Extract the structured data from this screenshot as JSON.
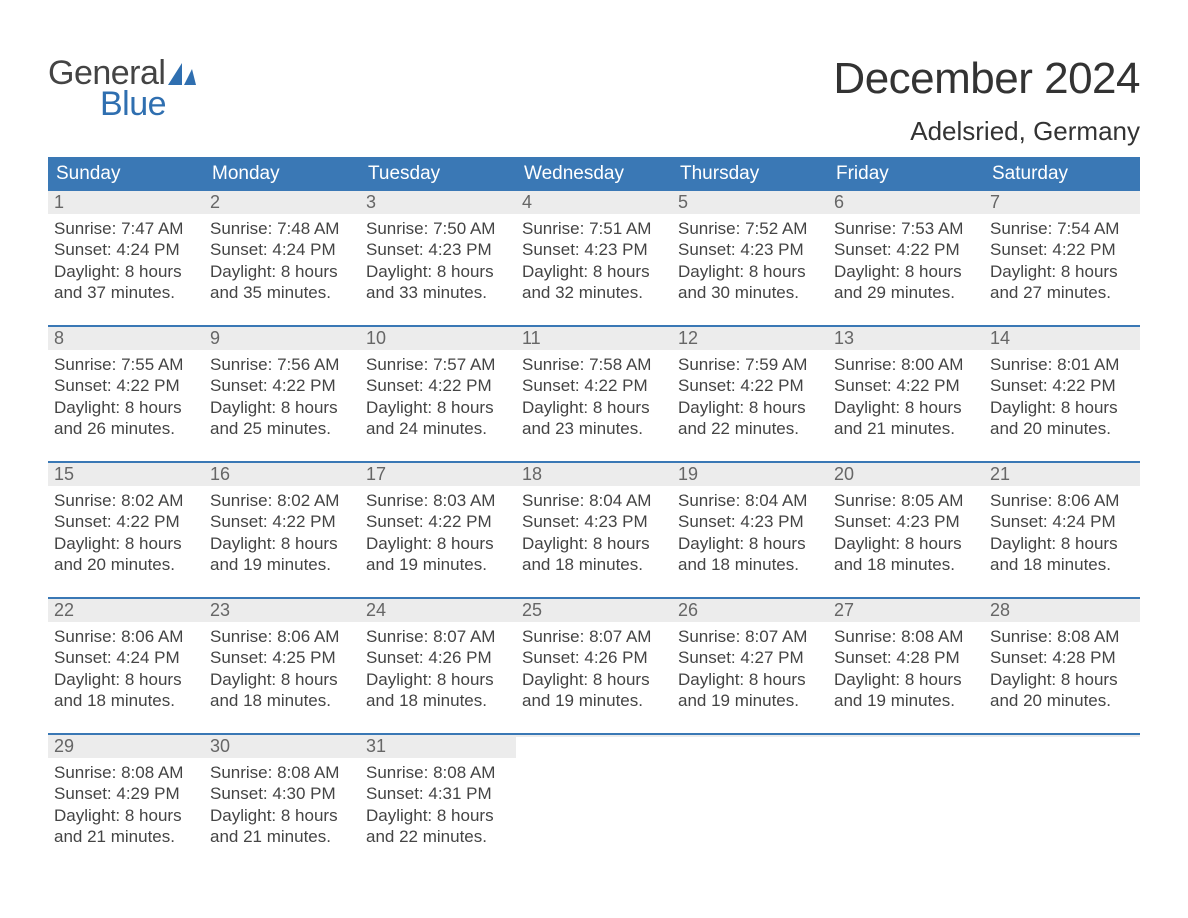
{
  "logo": {
    "text1": "General",
    "text2": "Blue",
    "sail_color": "#2f6fb0",
    "text1_color": "#444444",
    "text2_color": "#2f6fb0"
  },
  "title": "December 2024",
  "location": "Adelsried, Germany",
  "colors": {
    "header_bg": "#3a78b5",
    "header_text": "#ffffff",
    "daynum_bg": "#ececec",
    "daynum_text": "#666666",
    "body_text": "#444444",
    "week_border": "#3a78b5",
    "page_bg": "#ffffff"
  },
  "typography": {
    "title_fontsize": 44,
    "location_fontsize": 26,
    "dow_fontsize": 19,
    "daynum_fontsize": 18,
    "body_fontsize": 17,
    "font_family": "Arial"
  },
  "day_labels": [
    "Sunday",
    "Monday",
    "Tuesday",
    "Wednesday",
    "Thursday",
    "Friday",
    "Saturday"
  ],
  "weeks": [
    [
      {
        "n": "1",
        "sunrise": "Sunrise: 7:47 AM",
        "sunset": "Sunset: 4:24 PM",
        "d1": "Daylight: 8 hours",
        "d2": "and 37 minutes."
      },
      {
        "n": "2",
        "sunrise": "Sunrise: 7:48 AM",
        "sunset": "Sunset: 4:24 PM",
        "d1": "Daylight: 8 hours",
        "d2": "and 35 minutes."
      },
      {
        "n": "3",
        "sunrise": "Sunrise: 7:50 AM",
        "sunset": "Sunset: 4:23 PM",
        "d1": "Daylight: 8 hours",
        "d2": "and 33 minutes."
      },
      {
        "n": "4",
        "sunrise": "Sunrise: 7:51 AM",
        "sunset": "Sunset: 4:23 PM",
        "d1": "Daylight: 8 hours",
        "d2": "and 32 minutes."
      },
      {
        "n": "5",
        "sunrise": "Sunrise: 7:52 AM",
        "sunset": "Sunset: 4:23 PM",
        "d1": "Daylight: 8 hours",
        "d2": "and 30 minutes."
      },
      {
        "n": "6",
        "sunrise": "Sunrise: 7:53 AM",
        "sunset": "Sunset: 4:22 PM",
        "d1": "Daylight: 8 hours",
        "d2": "and 29 minutes."
      },
      {
        "n": "7",
        "sunrise": "Sunrise: 7:54 AM",
        "sunset": "Sunset: 4:22 PM",
        "d1": "Daylight: 8 hours",
        "d2": "and 27 minutes."
      }
    ],
    [
      {
        "n": "8",
        "sunrise": "Sunrise: 7:55 AM",
        "sunset": "Sunset: 4:22 PM",
        "d1": "Daylight: 8 hours",
        "d2": "and 26 minutes."
      },
      {
        "n": "9",
        "sunrise": "Sunrise: 7:56 AM",
        "sunset": "Sunset: 4:22 PM",
        "d1": "Daylight: 8 hours",
        "d2": "and 25 minutes."
      },
      {
        "n": "10",
        "sunrise": "Sunrise: 7:57 AM",
        "sunset": "Sunset: 4:22 PM",
        "d1": "Daylight: 8 hours",
        "d2": "and 24 minutes."
      },
      {
        "n": "11",
        "sunrise": "Sunrise: 7:58 AM",
        "sunset": "Sunset: 4:22 PM",
        "d1": "Daylight: 8 hours",
        "d2": "and 23 minutes."
      },
      {
        "n": "12",
        "sunrise": "Sunrise: 7:59 AM",
        "sunset": "Sunset: 4:22 PM",
        "d1": "Daylight: 8 hours",
        "d2": "and 22 minutes."
      },
      {
        "n": "13",
        "sunrise": "Sunrise: 8:00 AM",
        "sunset": "Sunset: 4:22 PM",
        "d1": "Daylight: 8 hours",
        "d2": "and 21 minutes."
      },
      {
        "n": "14",
        "sunrise": "Sunrise: 8:01 AM",
        "sunset": "Sunset: 4:22 PM",
        "d1": "Daylight: 8 hours",
        "d2": "and 20 minutes."
      }
    ],
    [
      {
        "n": "15",
        "sunrise": "Sunrise: 8:02 AM",
        "sunset": "Sunset: 4:22 PM",
        "d1": "Daylight: 8 hours",
        "d2": "and 20 minutes."
      },
      {
        "n": "16",
        "sunrise": "Sunrise: 8:02 AM",
        "sunset": "Sunset: 4:22 PM",
        "d1": "Daylight: 8 hours",
        "d2": "and 19 minutes."
      },
      {
        "n": "17",
        "sunrise": "Sunrise: 8:03 AM",
        "sunset": "Sunset: 4:22 PM",
        "d1": "Daylight: 8 hours",
        "d2": "and 19 minutes."
      },
      {
        "n": "18",
        "sunrise": "Sunrise: 8:04 AM",
        "sunset": "Sunset: 4:23 PM",
        "d1": "Daylight: 8 hours",
        "d2": "and 18 minutes."
      },
      {
        "n": "19",
        "sunrise": "Sunrise: 8:04 AM",
        "sunset": "Sunset: 4:23 PM",
        "d1": "Daylight: 8 hours",
        "d2": "and 18 minutes."
      },
      {
        "n": "20",
        "sunrise": "Sunrise: 8:05 AM",
        "sunset": "Sunset: 4:23 PM",
        "d1": "Daylight: 8 hours",
        "d2": "and 18 minutes."
      },
      {
        "n": "21",
        "sunrise": "Sunrise: 8:06 AM",
        "sunset": "Sunset: 4:24 PM",
        "d1": "Daylight: 8 hours",
        "d2": "and 18 minutes."
      }
    ],
    [
      {
        "n": "22",
        "sunrise": "Sunrise: 8:06 AM",
        "sunset": "Sunset: 4:24 PM",
        "d1": "Daylight: 8 hours",
        "d2": "and 18 minutes."
      },
      {
        "n": "23",
        "sunrise": "Sunrise: 8:06 AM",
        "sunset": "Sunset: 4:25 PM",
        "d1": "Daylight: 8 hours",
        "d2": "and 18 minutes."
      },
      {
        "n": "24",
        "sunrise": "Sunrise: 8:07 AM",
        "sunset": "Sunset: 4:26 PM",
        "d1": "Daylight: 8 hours",
        "d2": "and 18 minutes."
      },
      {
        "n": "25",
        "sunrise": "Sunrise: 8:07 AM",
        "sunset": "Sunset: 4:26 PM",
        "d1": "Daylight: 8 hours",
        "d2": "and 19 minutes."
      },
      {
        "n": "26",
        "sunrise": "Sunrise: 8:07 AM",
        "sunset": "Sunset: 4:27 PM",
        "d1": "Daylight: 8 hours",
        "d2": "and 19 minutes."
      },
      {
        "n": "27",
        "sunrise": "Sunrise: 8:08 AM",
        "sunset": "Sunset: 4:28 PM",
        "d1": "Daylight: 8 hours",
        "d2": "and 19 minutes."
      },
      {
        "n": "28",
        "sunrise": "Sunrise: 8:08 AM",
        "sunset": "Sunset: 4:28 PM",
        "d1": "Daylight: 8 hours",
        "d2": "and 20 minutes."
      }
    ],
    [
      {
        "n": "29",
        "sunrise": "Sunrise: 8:08 AM",
        "sunset": "Sunset: 4:29 PM",
        "d1": "Daylight: 8 hours",
        "d2": "and 21 minutes."
      },
      {
        "n": "30",
        "sunrise": "Sunrise: 8:08 AM",
        "sunset": "Sunset: 4:30 PM",
        "d1": "Daylight: 8 hours",
        "d2": "and 21 minutes."
      },
      {
        "n": "31",
        "sunrise": "Sunrise: 8:08 AM",
        "sunset": "Sunset: 4:31 PM",
        "d1": "Daylight: 8 hours",
        "d2": "and 22 minutes."
      },
      {
        "n": "",
        "sunrise": "",
        "sunset": "",
        "d1": "",
        "d2": "",
        "empty": true
      },
      {
        "n": "",
        "sunrise": "",
        "sunset": "",
        "d1": "",
        "d2": "",
        "empty": true
      },
      {
        "n": "",
        "sunrise": "",
        "sunset": "",
        "d1": "",
        "d2": "",
        "empty": true
      },
      {
        "n": "",
        "sunrise": "",
        "sunset": "",
        "d1": "",
        "d2": "",
        "empty": true
      }
    ]
  ]
}
